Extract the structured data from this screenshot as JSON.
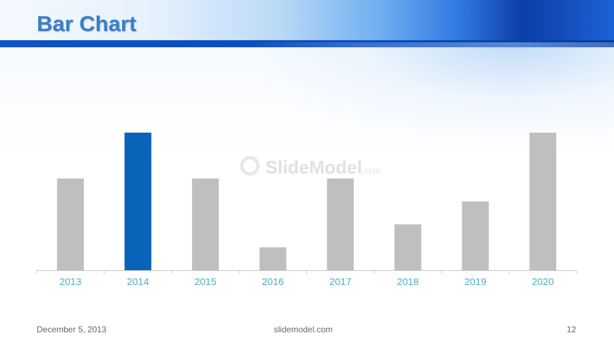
{
  "slide": {
    "title": "Bar Chart",
    "watermark": "SlideModel",
    "watermark_suffix": ".com",
    "footer_date": "December 5, 2013",
    "footer_site": "slidemodel.com",
    "page_number": "12"
  },
  "colors": {
    "bar_default": "#bfbfbf",
    "bar_highlight": "#0863b9",
    "tick_label": "#4aaec2",
    "axis_line": "#c8c8c8"
  },
  "chart_data": {
    "type": "bar",
    "categories": [
      "2013",
      "2014",
      "2015",
      "2016",
      "2017",
      "2018",
      "2019",
      "2020"
    ],
    "values": [
      4,
      6,
      4,
      1,
      4,
      2,
      3,
      6
    ],
    "highlight_category": "2014",
    "ylim": [
      0,
      6
    ],
    "title": "",
    "xlabel": "",
    "ylabel": "",
    "grid": false,
    "legend": "none"
  }
}
